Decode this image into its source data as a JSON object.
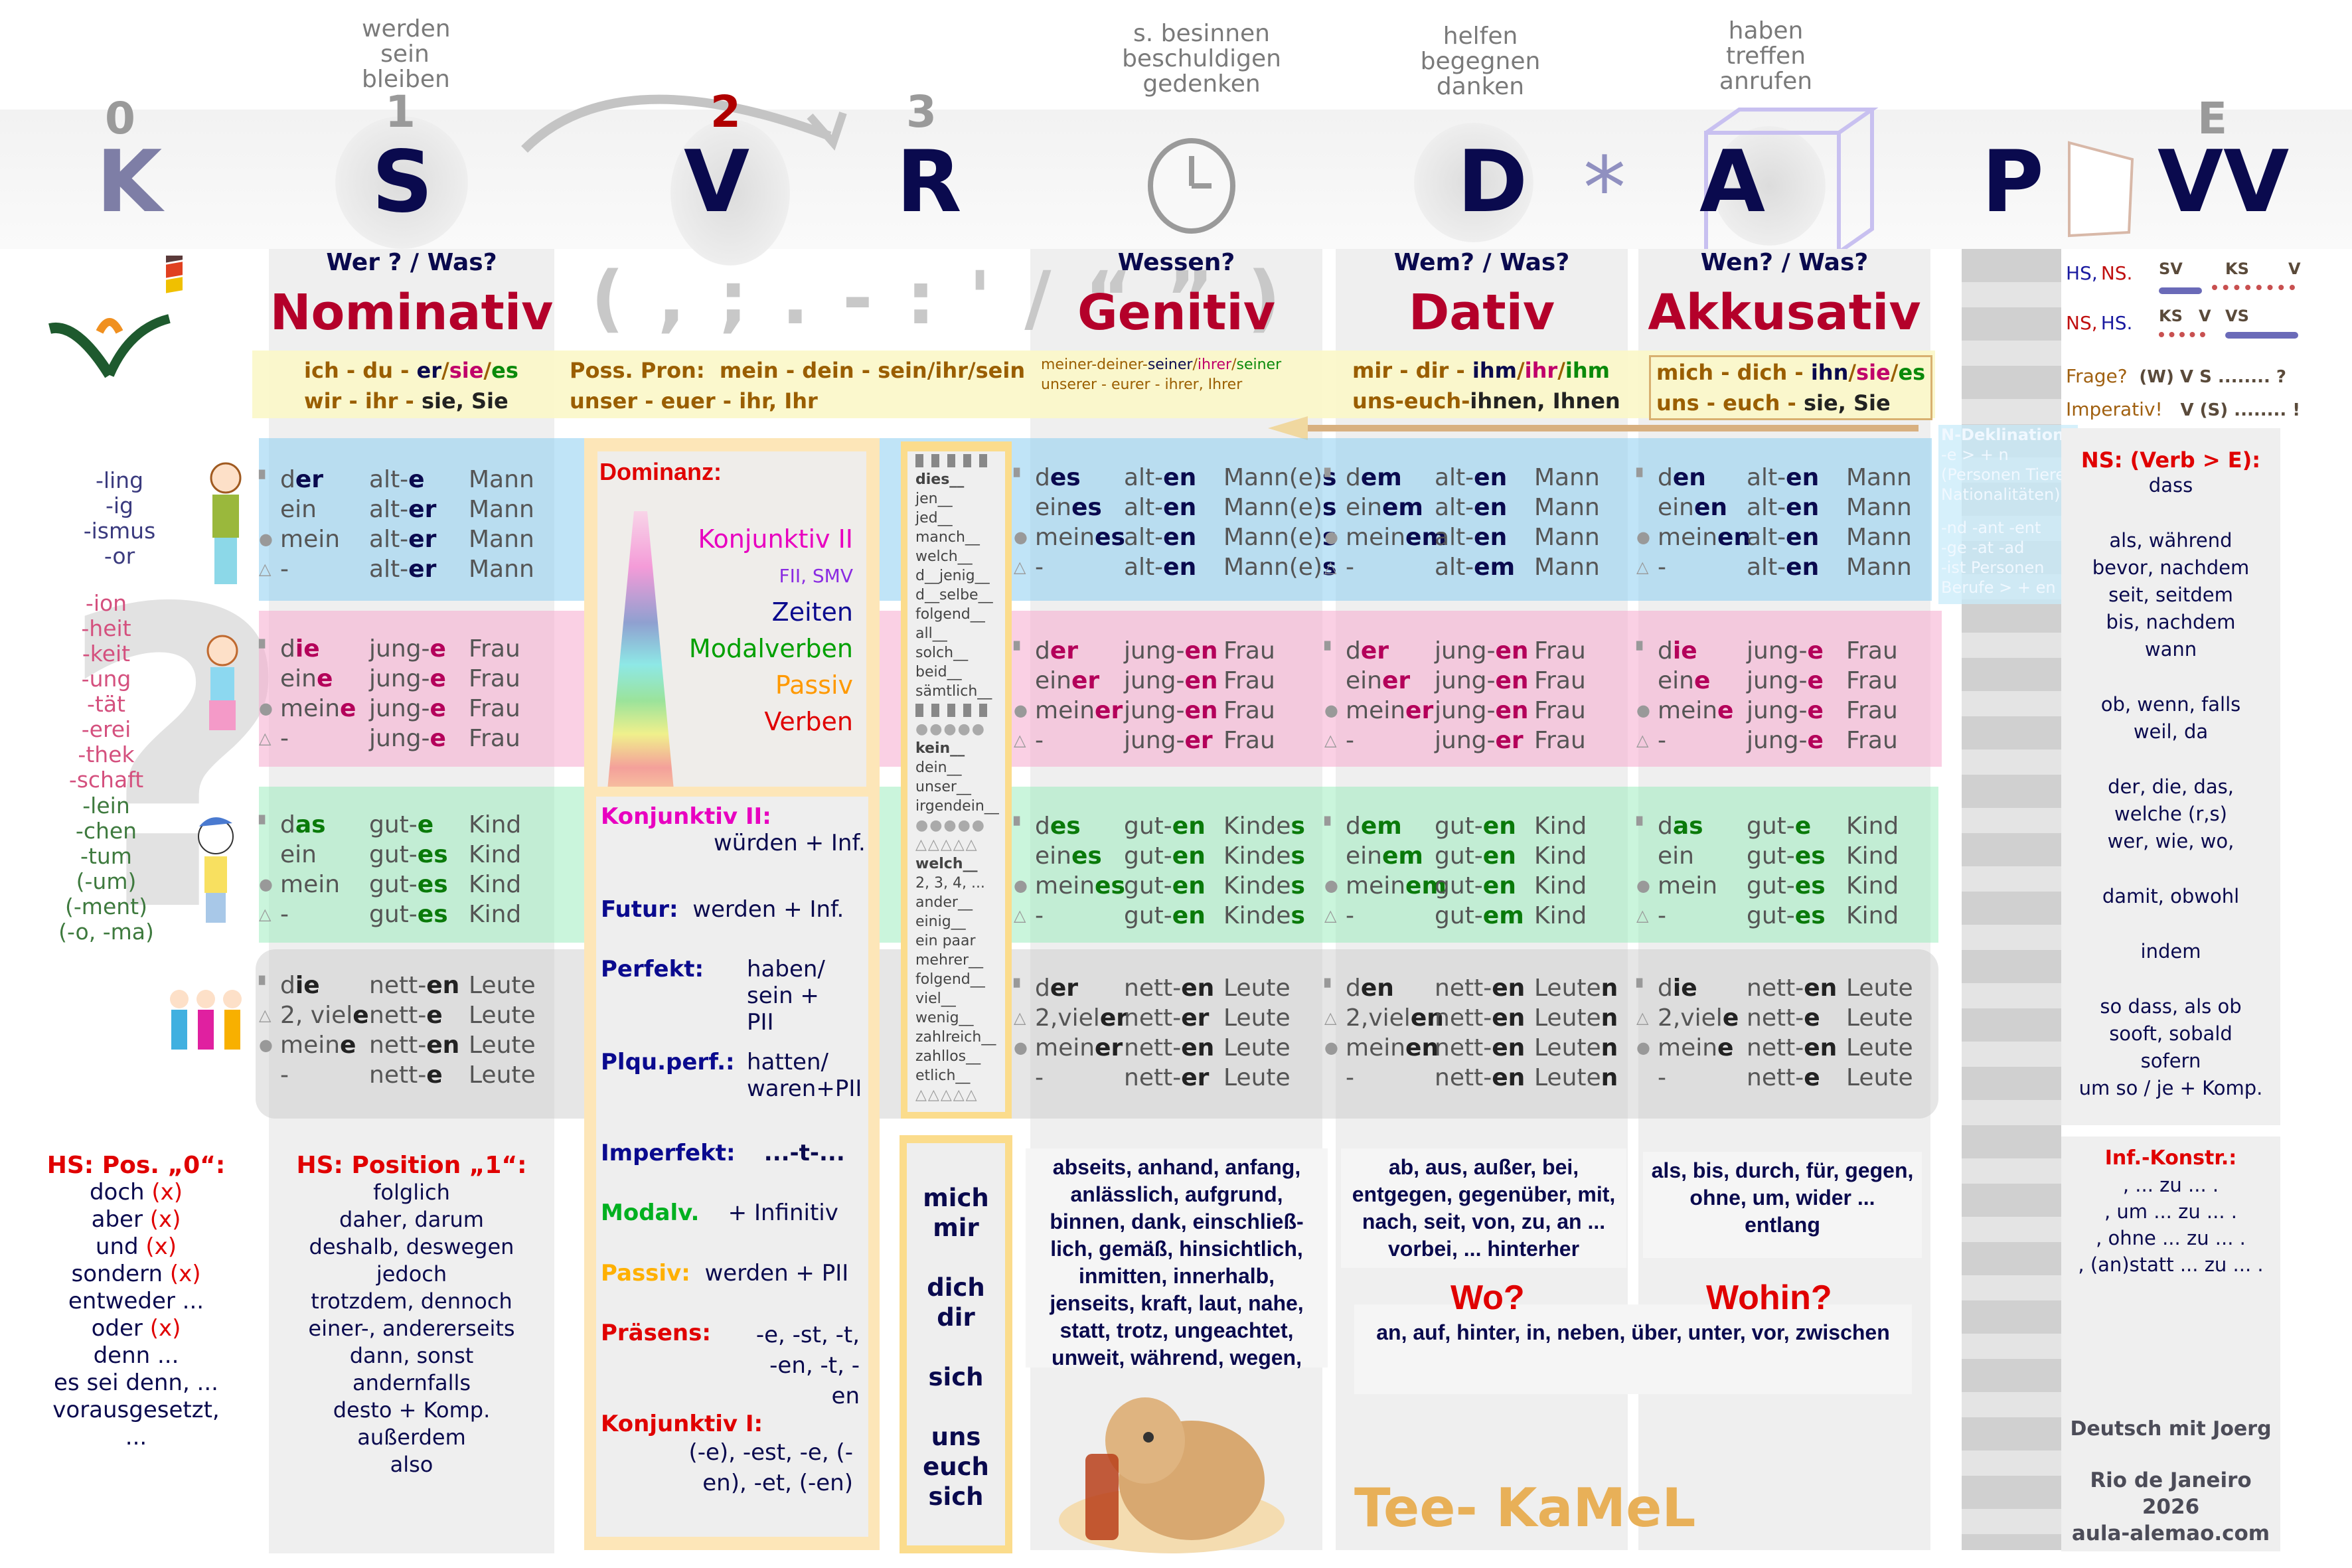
{
  "header": {
    "positions": [
      {
        "num": "0",
        "letter": "K",
        "num_color": "#9a9a9a",
        "letter_color": "#7e7ea6"
      },
      {
        "num": "1",
        "letter": "S",
        "num_color": "#9a9a9a",
        "letter_color": "#0a0a4e"
      },
      {
        "num": "2",
        "letter": "V",
        "num_color": "#b00000",
        "letter_color": "#0a0a4e"
      },
      {
        "num": "3",
        "letter": "R",
        "num_color": "#9a9a9a",
        "letter_color": "#0a0a4e"
      },
      {
        "num": "",
        "letter": "D",
        "letter_color": "#0a0a4e"
      },
      {
        "num": "",
        "letter": "*",
        "letter_color": "#9090c0"
      },
      {
        "num": "",
        "letter": "A",
        "letter_color": "#0a0a4e"
      },
      {
        "num": "",
        "letter": "P",
        "letter_color": "#0a0a4e"
      },
      {
        "num": "E",
        "letter": "VV",
        "num_color": "#9a9a9a",
        "letter_color": "#0a0a4e"
      }
    ],
    "verbs_nominativ": [
      "werden",
      "sein",
      "bleiben"
    ],
    "verbs_genitiv": [
      "s. besinnen",
      "beschuldigen",
      "gedenken"
    ],
    "verbs_dativ": [
      "helfen",
      "begegnen",
      "danken"
    ],
    "verbs_akkusativ": [
      "haben",
      "treffen",
      "anrufen"
    ],
    "punctuation": "( , ; . - : ' / “ ” )"
  },
  "cases": {
    "nominativ": {
      "question": "Wer ? / Was?",
      "name": "Nominativ"
    },
    "genitiv": {
      "question": "Wessen?",
      "name": "Genitiv"
    },
    "dativ": {
      "question": "Wem? / Was?",
      "name": "Dativ"
    },
    "akkusativ": {
      "question": "Wen? / Was?",
      "name": "Akkusativ"
    }
  },
  "pronouns": {
    "nominativ": {
      "line1": [
        "ich - du - ",
        "er",
        "/",
        "sie",
        "/",
        "es"
      ],
      "line2": [
        "wir - ihr - ",
        "sie, Sie"
      ]
    },
    "possessive": {
      "label": "Poss. Pron:",
      "line1": "mein - dein - sein/ihr/sein",
      "line2": "unser - euer - ihr, Ihr"
    },
    "genitiv": {
      "line1": [
        "meiner-deiner-",
        "seiner",
        "/",
        "ihrer",
        "/",
        "seiner"
      ],
      "line2": "unserer - eurer - ihrer, Ihrer"
    },
    "dativ": {
      "line1": [
        "mir - dir - ",
        "ihm",
        "/",
        "ihr",
        "/",
        "ihm"
      ],
      "line2": [
        "uns-euch-",
        "ihnen, Ihnen"
      ]
    },
    "akkusativ": {
      "line1": [
        "mich - dich - ",
        "ihn",
        "/",
        "sie",
        "/",
        "es"
      ],
      "line2": [
        "uns - euch - ",
        "sie, Sie"
      ]
    }
  },
  "suffixes": {
    "masculine": [
      "-ling",
      "-ig",
      "-ismus",
      "-or"
    ],
    "feminine": [
      "-ion",
      "-heit",
      "-keit",
      "-ung",
      "-tät",
      "-erei",
      "-thek",
      "-schaft"
    ],
    "neuter": [
      "-lein",
      "-chen",
      "-tum",
      "(-um)",
      "(-ment)",
      "(-o, -ma)"
    ]
  },
  "declension": {
    "nominativ": {
      "m": [
        [
          "d",
          "er",
          "alt-",
          "e",
          "Mann",
          ""
        ],
        [
          "ein",
          "",
          "alt-",
          "er",
          "Mann",
          ""
        ],
        [
          "mein",
          "",
          "alt-",
          "er",
          "Mann",
          ""
        ],
        [
          "-",
          "",
          "alt-",
          "er",
          "Mann",
          ""
        ]
      ],
      "f": [
        [
          "d",
          "ie",
          "jung-",
          "e",
          "Frau",
          ""
        ],
        [
          "ein",
          "e",
          "jung-",
          "e",
          "Frau",
          ""
        ],
        [
          "mein",
          "e",
          "jung-",
          "e",
          "Frau",
          ""
        ],
        [
          "-",
          "",
          "jung-",
          "e",
          "Frau",
          ""
        ]
      ],
      "n": [
        [
          "d",
          "as",
          "gut-",
          "e",
          "Kind",
          ""
        ],
        [
          "ein",
          "",
          "gut-",
          "es",
          "Kind",
          ""
        ],
        [
          "mein",
          "",
          "gut-",
          "es",
          "Kind",
          ""
        ],
        [
          "-",
          "",
          "gut-",
          "es",
          "Kind",
          ""
        ]
      ],
      "p": [
        [
          "d",
          "ie",
          "nett-",
          "en",
          "Leute",
          ""
        ],
        [
          "2, viel",
          "e",
          "nett-",
          "e",
          "Leute",
          ""
        ],
        [
          "mein",
          "e",
          "nett-",
          "en",
          "Leute",
          ""
        ],
        [
          "-",
          "",
          "nett-",
          "e",
          "Leute",
          ""
        ]
      ]
    },
    "genitiv": {
      "m": [
        [
          "d",
          "es",
          "alt-",
          "en",
          "Mann(e)",
          "s"
        ],
        [
          "ein",
          "es",
          "alt-",
          "en",
          "Mann(e)",
          "s"
        ],
        [
          "mein",
          "es",
          "alt-",
          "en",
          "Mann(e)",
          "s"
        ],
        [
          "-",
          "",
          "alt-",
          "en",
          "Mann(e)",
          "s"
        ]
      ],
      "f": [
        [
          "d",
          "er",
          "jung-",
          "en",
          "Frau",
          ""
        ],
        [
          "ein",
          "er",
          "jung-",
          "en",
          "Frau",
          ""
        ],
        [
          "mein",
          "er",
          "jung-",
          "en",
          "Frau",
          ""
        ],
        [
          "-",
          "",
          "jung-",
          "er",
          "Frau",
          ""
        ]
      ],
      "n": [
        [
          "d",
          "es",
          "gut-",
          "en",
          "Kinde",
          "s"
        ],
        [
          "ein",
          "es",
          "gut-",
          "en",
          "Kinde",
          "s"
        ],
        [
          "mein",
          "es",
          "gut-",
          "en",
          "Kinde",
          "s"
        ],
        [
          "-",
          "",
          "gut-",
          "en",
          "Kinde",
          "s"
        ]
      ],
      "p": [
        [
          "d",
          "er",
          "nett-",
          "en",
          "Leute",
          ""
        ],
        [
          "2,viel",
          "er",
          "nett-",
          "er",
          "Leute",
          ""
        ],
        [
          "mein",
          "er",
          "nett-",
          "en",
          "Leute",
          ""
        ],
        [
          "-",
          "",
          "nett-",
          "er",
          "Leute",
          ""
        ]
      ]
    },
    "dativ": {
      "m": [
        [
          "d",
          "em",
          "alt-",
          "en",
          "Mann",
          ""
        ],
        [
          "ein",
          "em",
          "alt-",
          "en",
          "Mann",
          ""
        ],
        [
          "mein",
          "em",
          "alt-",
          "en",
          "Mann",
          ""
        ],
        [
          "-",
          "",
          "alt-",
          "em",
          "Mann",
          ""
        ]
      ],
      "f": [
        [
          "d",
          "er",
          "jung-",
          "en",
          "Frau",
          ""
        ],
        [
          "ein",
          "er",
          "jung-",
          "en",
          "Frau",
          ""
        ],
        [
          "mein",
          "er",
          "jung-",
          "en",
          "Frau",
          ""
        ],
        [
          "-",
          "",
          "jung-",
          "er",
          "Frau",
          ""
        ]
      ],
      "n": [
        [
          "d",
          "em",
          "gut-",
          "en",
          "Kind",
          ""
        ],
        [
          "ein",
          "em",
          "gut-",
          "en",
          "Kind",
          ""
        ],
        [
          "mein",
          "em",
          "gut-",
          "en",
          "Kind",
          ""
        ],
        [
          "-",
          "",
          "gut-",
          "em",
          "Kind",
          ""
        ]
      ],
      "p": [
        [
          "d",
          "en",
          "nett-",
          "en",
          "Leute",
          "n"
        ],
        [
          "2,viel",
          "en",
          "nett-",
          "en",
          "Leute",
          "n"
        ],
        [
          "mein",
          "en",
          "nett-",
          "en",
          "Leute",
          "n"
        ],
        [
          "-",
          "",
          "nett-",
          "en",
          "Leute",
          "n"
        ]
      ]
    },
    "akkusativ": {
      "m": [
        [
          "d",
          "en",
          "alt-",
          "en",
          "Mann",
          ""
        ],
        [
          "ein",
          "en",
          "alt-",
          "en",
          "Mann",
          ""
        ],
        [
          "mein",
          "en",
          "alt-",
          "en",
          "Mann",
          ""
        ],
        [
          "-",
          "",
          "alt-",
          "en",
          "Mann",
          ""
        ]
      ],
      "f": [
        [
          "d",
          "ie",
          "jung-",
          "e",
          "Frau",
          ""
        ],
        [
          "ein",
          "e",
          "jung-",
          "e",
          "Frau",
          ""
        ],
        [
          "mein",
          "e",
          "jung-",
          "e",
          "Frau",
          ""
        ],
        [
          "-",
          "",
          "jung-",
          "e",
          "Frau",
          ""
        ]
      ],
      "n": [
        [
          "d",
          "as",
          "gut-",
          "e",
          "Kind",
          ""
        ],
        [
          "ein",
          "",
          "gut-",
          "es",
          "Kind",
          ""
        ],
        [
          "mein",
          "",
          "gut-",
          "es",
          "Kind",
          ""
        ],
        [
          "-",
          "",
          "gut-",
          "es",
          "Kind",
          ""
        ]
      ],
      "p": [
        [
          "d",
          "ie",
          "nett-",
          "en",
          "Leute",
          ""
        ],
        [
          "2,viel",
          "e",
          "nett-",
          "e",
          "Leute",
          ""
        ],
        [
          "mein",
          "e",
          "nett-",
          "en",
          "Leute",
          ""
        ],
        [
          "-",
          "",
          "nett-",
          "e",
          "Leute",
          ""
        ]
      ]
    }
  },
  "dominance": {
    "title": "Dominanz:",
    "items": [
      {
        "label": "Konjunktiv II",
        "color": "#e800c0"
      },
      {
        "label": "FII, SMV",
        "color": "#8a2be2"
      },
      {
        "label": "Zeiten",
        "color": "#0a0a8e"
      },
      {
        "label": "Modalverben",
        "color": "#00a000"
      },
      {
        "label": "Passiv",
        "color": "#ff9900"
      },
      {
        "label": "Verben",
        "color": "#e00000"
      }
    ]
  },
  "tenses": [
    {
      "label": "Konjunktiv II:",
      "color": "#e800c0",
      "value": "würden + Inf."
    },
    {
      "label": "Futur:",
      "color": "#0a0a8e",
      "value": "werden + Inf."
    },
    {
      "label": "Perfekt:",
      "color": "#0a0a8e",
      "value": "haben/ sein + PII"
    },
    {
      "label": "Plqu.perf.:",
      "color": "#0a0a8e",
      "value": "hatten/ waren+PII"
    },
    {
      "label": "Imperfekt:",
      "color": "#0a0a8e",
      "value": "...-t-..."
    },
    {
      "label": "Modalv.",
      "color": "#00b020",
      "value": "+ Infinitiv"
    },
    {
      "label": "Passiv:",
      "color": "#ffb000",
      "value": "werden + PII"
    },
    {
      "label": "Präsens:",
      "color": "#e00000",
      "value": "-e, -st, -t, -en, -t, -en"
    },
    {
      "label": "Konjunktiv I:",
      "color": "#e00000",
      "value": "(-e), -est, -e, (-en), -et, (-en)"
    }
  ],
  "determiners": {
    "group1": [
      "dies__",
      "jen__",
      "jed__",
      "manch__",
      "welch__",
      "d__jenig__",
      "d__selbe__",
      "folgend__",
      "all__",
      "solch__",
      "beid__",
      "sämtlich__"
    ],
    "group2": [
      "kein__",
      "dein__",
      "unser__",
      "irgendein__"
    ],
    "group3": [
      "welch__",
      "2, 3, 4, ...",
      "ander__",
      "einig__",
      "ein paar",
      "mehrer__",
      "folgend__",
      "viel__",
      "wenig__",
      "zahlreich__",
      "zahllos__",
      "etlich__"
    ]
  },
  "reflexive": [
    "mich",
    "mir",
    "dich",
    "dir",
    "sich",
    "uns",
    "euch",
    "sich"
  ],
  "prepositions": {
    "genitiv": "abseits, anhand, anfang, anlässlich, aufgrund, binnen, dank, einschließ-lich, gemäß, hinsichtlich, inmitten, innerhalb, jenseits, kraft, laut, nahe, statt, trotz, ungeachtet, unweit, während, wegen,",
    "dativ": "ab, aus, außer, bei, entgegen, gegenüber, mit, nach, seit, von, zu, an ... vorbei, ... hinterher",
    "akkusativ": "als, bis, durch, für, gegen, ohne, um, wider ... entlang",
    "wo": "Wo?",
    "wohin": "Wohin?",
    "wechsel": "an, auf, hinter, in, neben, über, unter, vor, zwischen"
  },
  "word_order": {
    "hs_ns": {
      "label1": "HS,",
      "label2": "NS.",
      "marks": [
        "SV",
        "KS",
        "V"
      ]
    },
    "ns_hs": {
      "label1": "NS,",
      "label2": "HS.",
      "marks": [
        "KS",
        "V",
        "VS"
      ]
    },
    "frage": {
      "label": "Frage?",
      "pattern": "(W) V  S ........ ?"
    },
    "imperativ": {
      "label": "Imperativ!",
      "pattern": "V (S) ........ !"
    }
  },
  "n_deklination": {
    "title": "N-Deklination:",
    "lines": [
      "-e  >  + n",
      "(Personen  Tiere",
      "Nationalitäten)",
      "-nd  -ant  -ent",
      "-ge  -at  -ad",
      "-ist  Personen",
      "Berufe  >  + en"
    ]
  },
  "ns_conjunctions": {
    "title": "NS: (Verb > E):",
    "lines": [
      "dass",
      "",
      "als, während",
      "bevor, nachdem",
      "seit, seitdem",
      "bis, nachdem",
      "wann",
      "",
      "ob, wenn, falls",
      "weil, da",
      "",
      "der, die, das,",
      "welche (r,s)",
      "wer, wie, wo,",
      "",
      "damit, obwohl",
      "",
      "indem",
      "",
      "so dass, als ob",
      "sooft, sobald",
      "sofern",
      "um so / je + Komp."
    ]
  },
  "hs_pos0": {
    "title": "HS: Pos. „0“:",
    "items": [
      {
        "word": "doch",
        "x": "(x)"
      },
      {
        "word": "aber",
        "x": "(x)"
      },
      {
        "word": "und",
        "x": "(x)"
      },
      {
        "word": "sondern",
        "x": "(x)"
      },
      {
        "word": "entweder  ...",
        "x": ""
      },
      {
        "word": "oder",
        "x": "(x)"
      },
      {
        "word": "denn  ...",
        "x": ""
      },
      {
        "word": "es sei denn, ...",
        "x": ""
      },
      {
        "word": "vorausgesetzt, ...",
        "x": ""
      }
    ]
  },
  "hs_pos1": {
    "title": "HS: Position „1“:",
    "items": [
      "folglich",
      "daher, darum",
      "deshalb, deswegen",
      "jedoch",
      "trotzdem, dennoch",
      "einer-, andererseits",
      "dann, sonst",
      "andernfalls",
      "desto + Komp.",
      "außerdem",
      "also"
    ]
  },
  "inf_konstr": {
    "title": "Inf.-Konstr.:",
    "items": [
      ", ... zu ... .",
      ", um ... zu ... .",
      ", ohne ...  zu ... .",
      ", (an)statt ... zu ... ."
    ]
  },
  "branding": {
    "mascot": "Tee- KaMeL",
    "author": "Deutsch mit Joerg",
    "place": "Rio de Janeiro 2026",
    "site": "aula-alemao.com"
  },
  "colors": {
    "masculine": "#8ccdf0",
    "feminine": "#f5aacd",
    "neuter": "#96ebb9",
    "plural": "#c8c8c8",
    "case_name": "#b4002a",
    "navy": "#0a0a4e",
    "pronoun_brown": "#9a5e00"
  }
}
